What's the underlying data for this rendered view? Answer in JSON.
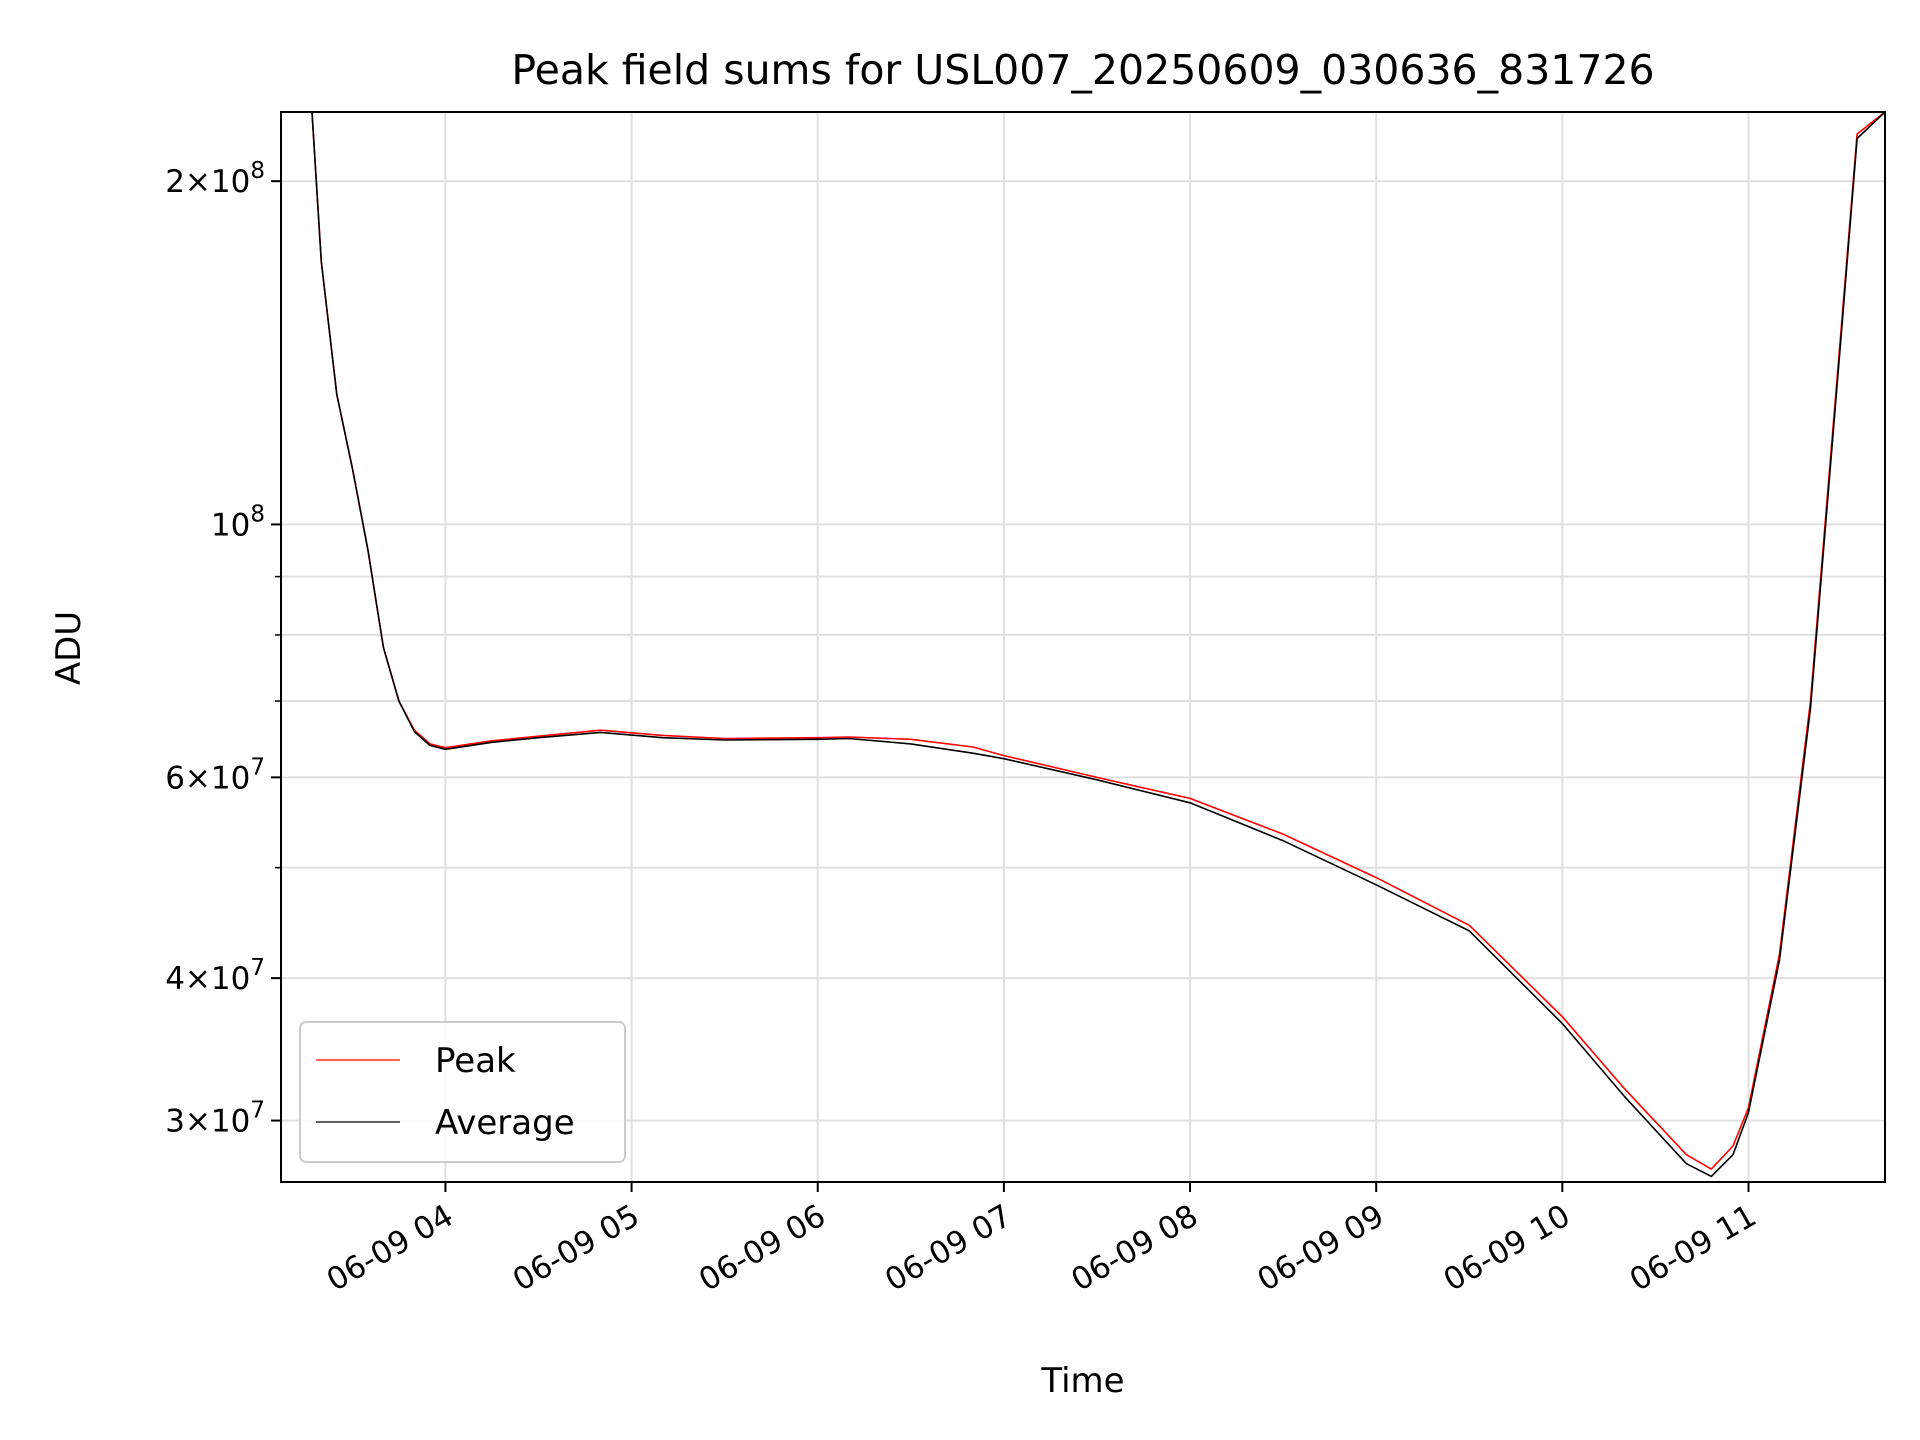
{
  "chart_data": {
    "type": "line",
    "title": "Peak field sums for USL007_20250609_030636_831726",
    "xlabel": "Time",
    "ylabel": "ADU",
    "xlim": [
      "06-09 03:07",
      "06-09 11:44"
    ],
    "ylim": [
      26500000,
      230000000
    ],
    "yscale": "log",
    "grid": true,
    "legend_position": "lower-left",
    "x_ticks": [
      "06-09 04",
      "06-09 05",
      "06-09 06",
      "06-09 07",
      "06-09 08",
      "06-09 09",
      "06-09 10",
      "06-09 11"
    ],
    "y_ticks": [
      {
        "value": 200000000,
        "mantissa": "2",
        "exponent": "8"
      },
      {
        "value": 100000000,
        "mantissa": "",
        "exponent": "8"
      },
      {
        "value": 60000000,
        "mantissa": "6",
        "exponent": "7"
      },
      {
        "value": 40000000,
        "mantissa": "4",
        "exponent": "7"
      },
      {
        "value": 30000000,
        "mantissa": "3",
        "exponent": "7"
      }
    ],
    "y_minor_ticks": [
      90000000,
      80000000,
      70000000,
      50000000
    ],
    "x": [
      "03:07",
      "03:17",
      "03:20",
      "03:25",
      "03:30",
      "03:35",
      "03:40",
      "03:45",
      "03:50",
      "03:55",
      "04:00",
      "04:15",
      "04:30",
      "04:50",
      "05:10",
      "05:30",
      "06:00",
      "06:10",
      "06:30",
      "06:50",
      "07:00",
      "07:30",
      "08:00",
      "08:30",
      "09:00",
      "09:30",
      "10:00",
      "10:20",
      "10:40",
      "10:48",
      "10:55",
      "11:00",
      "11:10",
      "11:20",
      "11:30",
      "11:35",
      "11:44"
    ],
    "series": [
      {
        "name": "Peak",
        "color": "#ff0000",
        "values": [
          230000000,
          230000000,
          170000000,
          130000000,
          112000000,
          95000000,
          78000000,
          70000000,
          66000000,
          64200000,
          63700000,
          64600000,
          65200000,
          66000000,
          65300000,
          64900000,
          65000000,
          65100000,
          64800000,
          63800000,
          62700000,
          60000000,
          57500000,
          53500000,
          49000000,
          44500000,
          37000000,
          32000000,
          28000000,
          27200000,
          28500000,
          30800000,
          42000000,
          70000000,
          150000000,
          220000000,
          230000000
        ]
      },
      {
        "name": "Average",
        "color": "#000000",
        "values": [
          230000000,
          230000000,
          170000000,
          130000000,
          112000000,
          95000000,
          78000000,
          70000000,
          65800000,
          64000000,
          63500000,
          64400000,
          65000000,
          65700000,
          65000000,
          64700000,
          64800000,
          64900000,
          64200000,
          63000000,
          62300000,
          59700000,
          57000000,
          52800000,
          48300000,
          44000000,
          36500000,
          31500000,
          27500000,
          26800000,
          28000000,
          30500000,
          41500000,
          69000000,
          148000000,
          218000000,
          230000000
        ]
      }
    ]
  }
}
